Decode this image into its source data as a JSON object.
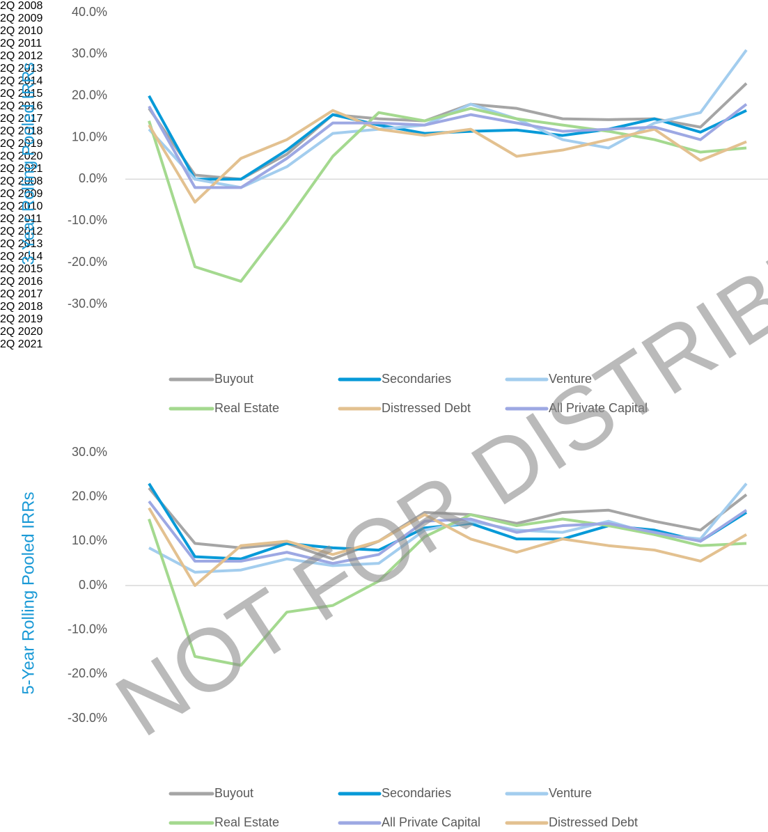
{
  "chart_data": [
    {
      "type": "line",
      "y_label": "3-Year Rolling Pooled IRRs",
      "categories": [
        "2Q 2008",
        "2Q 2009",
        "2Q 2010",
        "2Q 2011",
        "2Q 2012",
        "2Q 2013",
        "2Q 2014",
        "2Q 2015",
        "2Q 2016",
        "2Q 2017",
        "2Q 2018",
        "2Q 2019",
        "2Q 2020",
        "2Q 2021"
      ],
      "ylim": [
        -30,
        40
      ],
      "yticks": [
        {
          "value": -30,
          "label": "-30.0%"
        },
        {
          "value": -20,
          "label": "-20.0%"
        },
        {
          "value": -10,
          "label": "-10.0%"
        },
        {
          "value": 0,
          "label": "0.0%"
        },
        {
          "value": 10,
          "label": "10.0%"
        },
        {
          "value": 20,
          "label": "20.0%"
        },
        {
          "value": 30,
          "label": "30.0%"
        },
        {
          "value": 40,
          "label": "40.0%"
        }
      ],
      "grid": false,
      "legend": "bottom",
      "series": [
        {
          "name": "Buyout",
          "color": "#a5a5a5",
          "values": [
            17,
            1,
            0,
            6,
            15.5,
            14.5,
            14,
            18,
            17,
            14.5,
            14.3,
            14.5,
            12.5,
            23
          ]
        },
        {
          "name": "Secondaries",
          "color": "#079ad8",
          "values": [
            20,
            0,
            0,
            7,
            15.5,
            13,
            11,
            11.5,
            11.8,
            10.5,
            12,
            14.5,
            11.3,
            16.5
          ]
        },
        {
          "name": "Venture",
          "color": "#a3cdee",
          "values": [
            12,
            0,
            -2,
            3,
            11,
            12,
            13,
            18,
            14.5,
            9.5,
            7.5,
            13.5,
            16,
            31
          ]
        },
        {
          "name": "Real Estate",
          "color": "#a4d98f",
          "values": [
            14,
            -21,
            -24.5,
            -10,
            5.5,
            16,
            14,
            17,
            14.5,
            13,
            11.5,
            9.5,
            6.5,
            7.5
          ]
        },
        {
          "name": "Distressed Debt",
          "color": "#e3c190",
          "values": [
            13,
            -5.5,
            5,
            9.5,
            16.5,
            12,
            10.5,
            12,
            5.5,
            7,
            9.5,
            12,
            4.5,
            9
          ]
        },
        {
          "name": "All Private Capital",
          "color": "#9da8e3",
          "values": [
            17.5,
            -2,
            -2,
            5,
            13.5,
            13.5,
            13,
            15.5,
            13.5,
            11.5,
            12,
            12.5,
            9.5,
            18
          ]
        }
      ]
    },
    {
      "type": "line",
      "y_label": "5-Year Rolling Pooled IRRs",
      "categories": [
        "2Q 2008",
        "2Q 2009",
        "2Q 2010",
        "2Q 2011",
        "2Q 2012",
        "2Q 2013",
        "2Q 2014",
        "2Q 2015",
        "2Q 2016",
        "2Q 2017",
        "2Q 2018",
        "2Q 2019",
        "2Q 2020",
        "2Q 2021"
      ],
      "ylim": [
        -30,
        30
      ],
      "yticks": [
        {
          "value": -30,
          "label": "-30.0%"
        },
        {
          "value": -20,
          "label": "-20.0%"
        },
        {
          "value": -10,
          "label": "-10.0%"
        },
        {
          "value": 0,
          "label": "0.0%"
        },
        {
          "value": 10,
          "label": "10.0%"
        },
        {
          "value": 20,
          "label": "20.0%"
        },
        {
          "value": 30,
          "label": "30.0%"
        }
      ],
      "grid": false,
      "legend": "bottom",
      "series": [
        {
          "name": "Buyout",
          "color": "#a5a5a5",
          "values": [
            22,
            9.5,
            8.5,
            9.5,
            6,
            10,
            16.5,
            16,
            14,
            16.5,
            17,
            14.5,
            12.5,
            20.5
          ]
        },
        {
          "name": "Secondaries",
          "color": "#079ad8",
          "values": [
            23,
            6.5,
            6,
            9.5,
            8.5,
            8,
            13,
            14,
            10.5,
            10.5,
            13.5,
            12.5,
            10,
            16.5
          ]
        },
        {
          "name": "Venture",
          "color": "#a3cdee",
          "values": [
            8.5,
            3,
            3.5,
            6,
            4.5,
            5,
            12.5,
            14.5,
            12.5,
            12,
            14.5,
            11.5,
            10.5,
            23
          ]
        },
        {
          "name": "Real Estate",
          "color": "#a4d98f",
          "values": [
            15,
            -16,
            -18,
            -6,
            -4.5,
            1,
            11,
            16,
            13.5,
            15,
            13.5,
            11.5,
            9,
            9.5
          ]
        },
        {
          "name": "All Private Capital",
          "color": "#9da8e3",
          "values": [
            19,
            5.5,
            5.5,
            7.5,
            5,
            7,
            14.5,
            15,
            12,
            13.5,
            14,
            12,
            10,
            17
          ]
        },
        {
          "name": "Distressed Debt",
          "color": "#e3c190",
          "values": [
            17.5,
            0,
            9,
            10,
            7,
            10,
            16,
            10.5,
            7.5,
            10.5,
            9,
            8,
            5.5,
            11.5
          ]
        }
      ]
    }
  ],
  "watermark": "NOT FOR DISTRIBUTION"
}
